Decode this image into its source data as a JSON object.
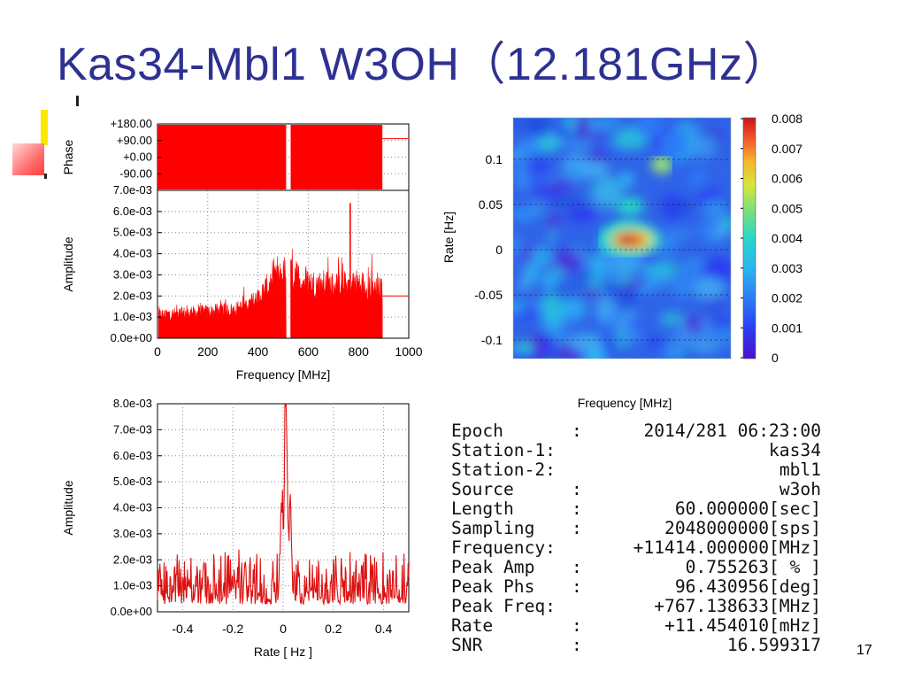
{
  "slide": {
    "title": "Kas34-Mbl1 W3OH（12.181GHz）",
    "page_number": "17"
  },
  "colors": {
    "title": "#2e3192",
    "data_red": "#ff0000",
    "line_red": "#dd1111"
  },
  "chart_data": [
    {
      "id": "phase",
      "type": "bar",
      "ylabel": "Phase",
      "yticks": [
        "+180.00",
        "+90.00",
        "+0.00",
        "-90.00"
      ],
      "ylim": [
        -180,
        180
      ],
      "x_range_mhz": [
        0,
        1000
      ],
      "filled_band_mhz": [
        [
          0,
          512
        ],
        [
          530,
          895
        ]
      ],
      "grid": true
    },
    {
      "id": "amplitude-spectrum",
      "type": "bar",
      "xlabel": "Frequency [MHz]",
      "ylabel": "Amplitude",
      "xticks": [
        "0",
        "200",
        "400",
        "600",
        "800",
        "1000"
      ],
      "yticks": [
        "7.0e-03",
        "6.0e-03",
        "5.0e-03",
        "4.0e-03",
        "3.0e-03",
        "2.0e-03",
        "1.0e-03",
        "0.0e+00"
      ],
      "xlim": [
        0,
        1000
      ],
      "ylim": [
        0,
        0.007
      ],
      "grid": true,
      "envelope": [
        [
          5,
          0.0014
        ],
        [
          100,
          0.0015
        ],
        [
          200,
          0.0016
        ],
        [
          300,
          0.0017
        ],
        [
          350,
          0.0019
        ],
        [
          400,
          0.0024
        ],
        [
          450,
          0.0033
        ],
        [
          500,
          0.0038
        ],
        [
          512,
          0.0041
        ],
        [
          530,
          0.0039
        ],
        [
          600,
          0.0033
        ],
        [
          700,
          0.0032
        ],
        [
          767,
          0.0064
        ],
        [
          800,
          0.0033
        ],
        [
          895,
          0.0029
        ]
      ],
      "peak": {
        "x": 767,
        "y": 0.0064
      }
    },
    {
      "id": "rate-amplitude",
      "type": "line",
      "xlabel": "Rate [  Hz  ]",
      "ylabel": "Amplitude",
      "xticks": [
        "-0.4",
        "-0.2",
        "0",
        "0.2",
        "0.4"
      ],
      "yticks": [
        "8.0e-03",
        "7.0e-03",
        "6.0e-03",
        "5.0e-03",
        "4.0e-03",
        "3.0e-03",
        "2.0e-03",
        "1.0e-03",
        "0.0e+00"
      ],
      "xlim": [
        -0.5,
        0.5
      ],
      "ylim": [
        0,
        0.008
      ],
      "grid": true,
      "peak": {
        "x": 0.011,
        "y": 0.0075
      },
      "noise_level": 0.0015
    },
    {
      "id": "fringe-map",
      "type": "heatmap",
      "xlabel": "Frequency [MHz]",
      "ylabel": "Rate [Hz]",
      "yticks": [
        "0.1",
        "0.05",
        "0",
        "-0.05",
        "-0.1"
      ],
      "colorbar_ticks": [
        "0.008",
        "0.007",
        "0.006",
        "0.005",
        "0.004",
        "0.003",
        "0.002",
        "0.001",
        "0"
      ],
      "colorbar_range": [
        0,
        0.008
      ],
      "peak": {
        "rate": 0.011,
        "value": 0.0075
      }
    }
  ],
  "info": {
    "rows": [
      {
        "key": "Epoch",
        "value": "2014/281 06:23:00"
      },
      {
        "key": "Station-1:",
        "value": "kas34"
      },
      {
        "key": "Station-2:",
        "value": "mbl1"
      },
      {
        "key": "Source",
        "value": "w3oh"
      },
      {
        "key": "Length",
        "value": "60.000000[sec]"
      },
      {
        "key": "Sampling",
        "value": "2048000000[sps]"
      },
      {
        "key": "Frequency:",
        "value": "+11414.000000[MHz]"
      },
      {
        "key": "Peak Amp",
        "value": "0.755263[ % ]"
      },
      {
        "key": "Peak Phs",
        "value": "96.430956[deg]"
      },
      {
        "key": "Peak Freq:",
        "value": "+767.138633[MHz]"
      },
      {
        "key": "Rate",
        "value": "+11.454010[mHz]"
      },
      {
        "key": "SNR",
        "value": "16.599317"
      }
    ],
    "separator": ":"
  }
}
